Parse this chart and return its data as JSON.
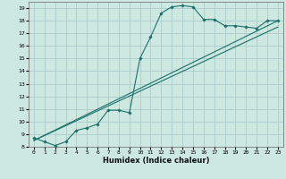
{
  "title": "",
  "xlabel": "Humidex (Indice chaleur)",
  "xlim": [
    -0.5,
    23.5
  ],
  "ylim": [
    8,
    19.5
  ],
  "xticks": [
    0,
    1,
    2,
    3,
    4,
    5,
    6,
    7,
    8,
    9,
    10,
    11,
    12,
    13,
    14,
    15,
    16,
    17,
    18,
    19,
    20,
    21,
    22,
    23
  ],
  "yticks": [
    8,
    9,
    10,
    11,
    12,
    13,
    14,
    15,
    16,
    17,
    18,
    19
  ],
  "background_color": "#cce8e0",
  "grid_color": "#aacccc",
  "line_color": "#1a7068",
  "curve_x": [
    0,
    1,
    2,
    3,
    4,
    5,
    6,
    7,
    8,
    9,
    10,
    11,
    12,
    13,
    14,
    15,
    16,
    17,
    18,
    19,
    20,
    21,
    22,
    23
  ],
  "curve_y": [
    8.7,
    8.4,
    8.1,
    8.4,
    9.3,
    9.5,
    9.8,
    10.9,
    10.9,
    10.7,
    15.0,
    16.7,
    18.6,
    19.1,
    19.2,
    19.1,
    18.1,
    18.1,
    17.6,
    17.6,
    17.5,
    17.4,
    18.0,
    18.0
  ],
  "line1_x": [
    0,
    23
  ],
  "line1_y": [
    8.5,
    18.0
  ],
  "line2_x": [
    0,
    23
  ],
  "line2_y": [
    8.5,
    17.5
  ],
  "xlabel_fontsize": 6,
  "tick_fontsize": 4.5
}
